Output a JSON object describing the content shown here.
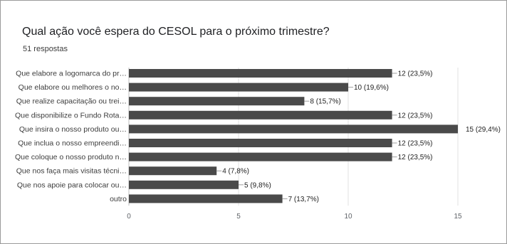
{
  "chart": {
    "title": "Qual ação você espera do CESOL para o próximo trimestre?",
    "subtitle": "51 respostas"
  },
  "chart_data": {
    "type": "bar",
    "orientation": "horizontal",
    "title": "Qual ação você espera do CESOL para o próximo trimestre?",
    "subtitle": "51 respostas",
    "categories": [
      "Que elabore a logomarca do pr…",
      "Que elabore ou melhores o no…",
      "Que realize capacitação ou trei…",
      "Que disponibilize o Fundo Rota…",
      "Que insira o nosso produto ou…",
      "Que inclua o nosso empreendi…",
      "Que coloque o nosso produto n…",
      "Que nos faça mais visitas técni…",
      "Que nos apoie para colocar ou…",
      "outro"
    ],
    "values": [
      12,
      10,
      8,
      12,
      15,
      12,
      12,
      4,
      5,
      7
    ],
    "data_labels": [
      "12 (23,5%)",
      "10 (19,6%)",
      "8 (15,7%)",
      "12 (23,5%)",
      "15 (29,4%)",
      "12 (23,5%)",
      "12 (23,5%)",
      "4 (7,8%)",
      "5 (9,8%)",
      "7 (13,7%)"
    ],
    "xlim": [
      0,
      15
    ],
    "xticks": [
      "0",
      "5",
      "10",
      "15"
    ],
    "grid": true,
    "bar_color": "#4a4a4a"
  }
}
